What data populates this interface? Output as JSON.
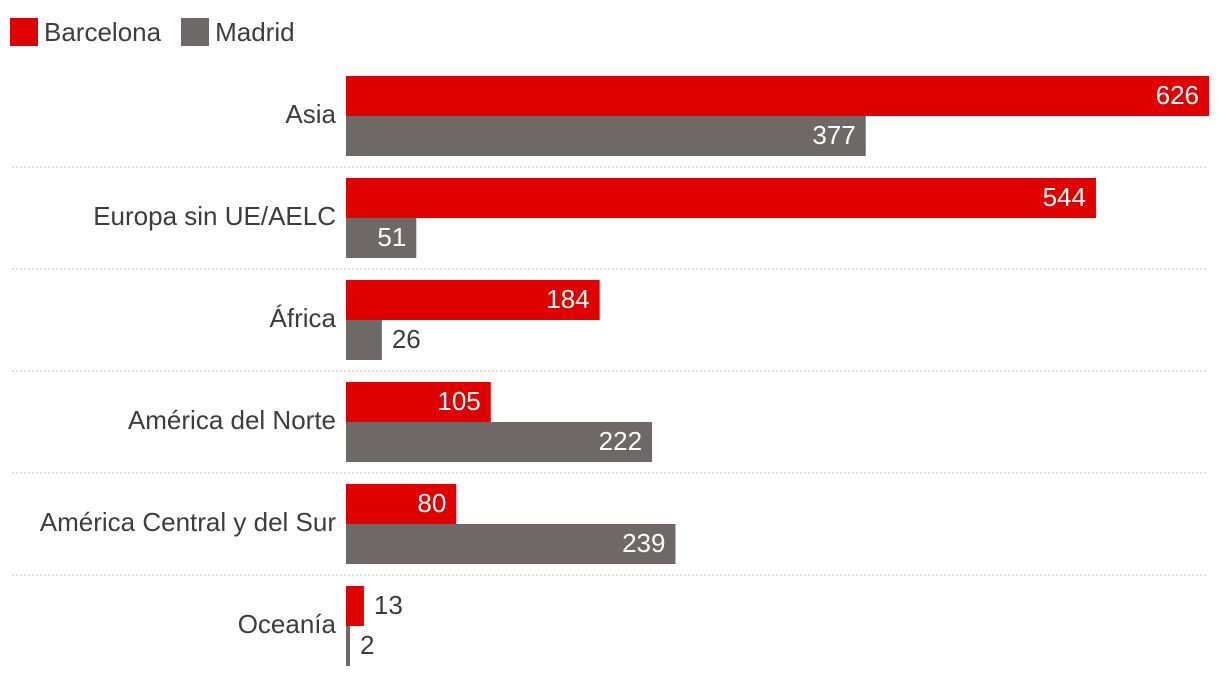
{
  "legend": {
    "items": [
      {
        "label": "Barcelona",
        "color": "#e00000"
      },
      {
        "label": "Madrid",
        "color": "#6e6867"
      }
    ]
  },
  "chart_data": {
    "type": "bar",
    "orientation": "horizontal",
    "categories": [
      "Asia",
      "Europa sin UE/AELC",
      "África",
      "América del Norte",
      "América Central y del Sur",
      "Oceanía"
    ],
    "series": [
      {
        "name": "Barcelona",
        "color": "#e00000",
        "values": [
          626,
          544,
          184,
          105,
          80,
          13
        ]
      },
      {
        "name": "Madrid",
        "color": "#6e6867",
        "values": [
          377,
          51,
          26,
          222,
          239,
          2
        ]
      }
    ],
    "title": "",
    "xlabel": "",
    "ylabel": "",
    "xlim": [
      0,
      626
    ],
    "grid": false,
    "legend_position": "top-left",
    "data_labels": true
  }
}
